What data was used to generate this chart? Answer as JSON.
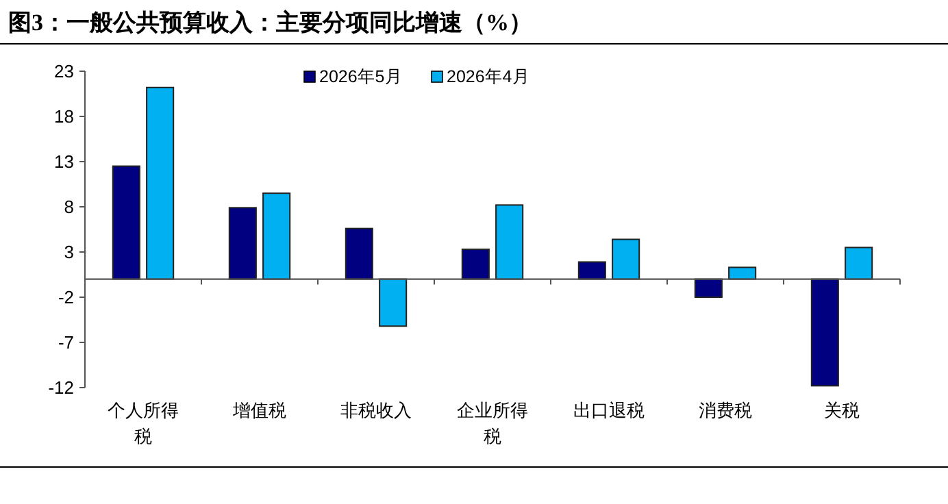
{
  "chart_data": {
    "type": "bar",
    "title": "图3：一般公共预算收入：主要分项同比增速（%）",
    "categories": [
      "个人所得税",
      "增值税",
      "非税收入",
      "企业所得税",
      "出口退税",
      "消费税",
      "关税"
    ],
    "series": [
      {
        "name": "2026年5月",
        "color": "#000080",
        "values": [
          12.5,
          7.9,
          5.6,
          3.3,
          1.9,
          -2.0,
          -11.8
        ]
      },
      {
        "name": "2026年4月",
        "color": "#00b0f0",
        "values": [
          21.2,
          9.5,
          -5.2,
          8.2,
          4.4,
          1.3,
          3.5
        ]
      }
    ],
    "ylim": [
      -12,
      23
    ],
    "yticks": [
      -12,
      -7,
      -2,
      3,
      8,
      13,
      18,
      23
    ],
    "grid": false,
    "legend": "top"
  }
}
